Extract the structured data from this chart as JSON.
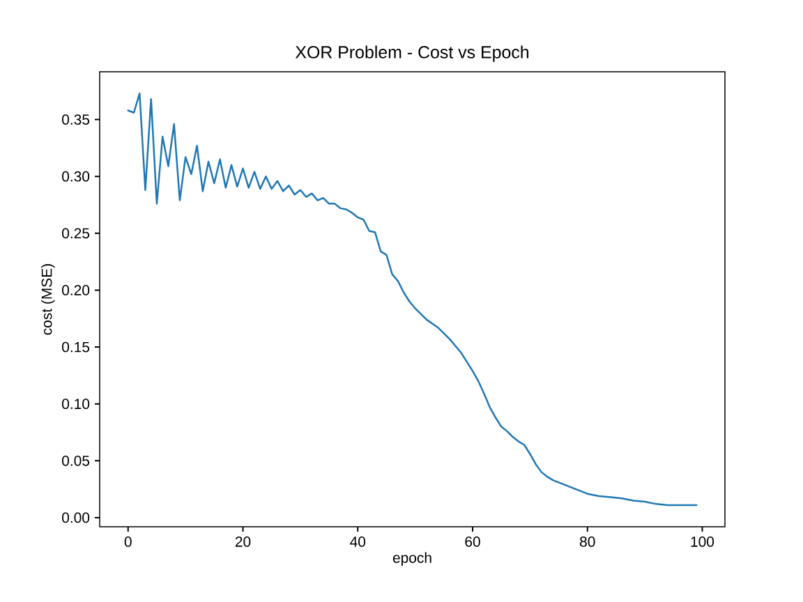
{
  "chart_data": {
    "type": "line",
    "title": "XOR Problem - Cost vs Epoch",
    "xlabel": "epoch",
    "ylabel": "cost (MSE)",
    "x": [
      0,
      1,
      2,
      3,
      4,
      5,
      6,
      7,
      8,
      9,
      10,
      11,
      12,
      13,
      14,
      15,
      16,
      17,
      18,
      19,
      20,
      21,
      22,
      23,
      24,
      25,
      26,
      27,
      28,
      29,
      30,
      31,
      32,
      33,
      34,
      35,
      36,
      37,
      38,
      39,
      40,
      41,
      42,
      43,
      44,
      45,
      46,
      47,
      48,
      49,
      50,
      51,
      52,
      54,
      56,
      58,
      60,
      61,
      62,
      63,
      64,
      65,
      66,
      67,
      68,
      69,
      70,
      71,
      72,
      73,
      74,
      75,
      76,
      78,
      80,
      82,
      84,
      86,
      88,
      90,
      92,
      94,
      96,
      99
    ],
    "series": [
      {
        "color": "#1f77b4",
        "values": [
          0.358,
          0.356,
          0.373,
          0.288,
          0.368,
          0.276,
          0.335,
          0.309,
          0.346,
          0.279,
          0.317,
          0.302,
          0.327,
          0.287,
          0.313,
          0.294,
          0.315,
          0.29,
          0.31,
          0.291,
          0.307,
          0.29,
          0.304,
          0.289,
          0.3,
          0.289,
          0.296,
          0.287,
          0.292,
          0.284,
          0.288,
          0.282,
          0.285,
          0.279,
          0.281,
          0.276,
          0.276,
          0.272,
          0.271,
          0.268,
          0.264,
          0.262,
          0.252,
          0.251,
          0.234,
          0.231,
          0.214,
          0.208,
          0.198,
          0.19,
          0.184,
          0.179,
          0.174,
          0.167,
          0.157,
          0.145,
          0.129,
          0.12,
          0.109,
          0.097,
          0.088,
          0.08,
          0.076,
          0.071,
          0.067,
          0.064,
          0.056,
          0.047,
          0.04,
          0.036,
          0.033,
          0.031,
          0.029,
          0.025,
          0.021,
          0.019,
          0.018,
          0.017,
          0.015,
          0.014,
          0.012,
          0.011,
          0.011,
          0.011
        ]
      }
    ],
    "xlim": [
      -4.95,
      103.95
    ],
    "ylim": [
      -0.008,
      0.392
    ],
    "xticks": [
      0,
      20,
      40,
      60,
      80,
      100
    ],
    "yticks": [
      {
        "value": 0,
        "label": "0.00"
      },
      {
        "value": 0.05,
        "label": "0.05"
      },
      {
        "value": 0.1,
        "label": "0.10"
      },
      {
        "value": 0.15,
        "label": "0.15"
      },
      {
        "value": 0.2,
        "label": "0.20"
      },
      {
        "value": 0.25,
        "label": "0.25"
      },
      {
        "value": 0.3,
        "label": "0.30"
      },
      {
        "value": 0.35,
        "label": "0.35"
      }
    ]
  }
}
